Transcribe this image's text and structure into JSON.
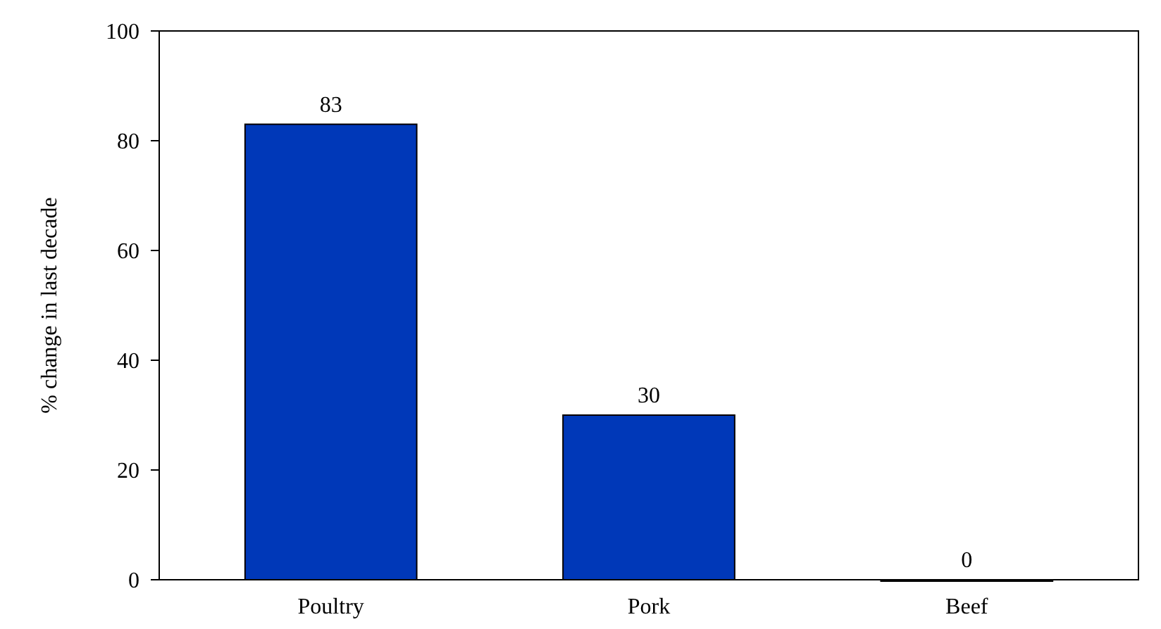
{
  "chart_data": {
    "type": "bar",
    "ylabel": "% change in last decade",
    "categories": [
      "Poultry",
      "Pork",
      "Beef"
    ],
    "values": [
      83,
      30,
      0
    ],
    "color": "#0038b8",
    "ylim": [
      0,
      100
    ],
    "yticks": [
      0,
      20,
      40,
      60,
      80,
      100
    ],
    "grid": false,
    "data_labels": true
  }
}
